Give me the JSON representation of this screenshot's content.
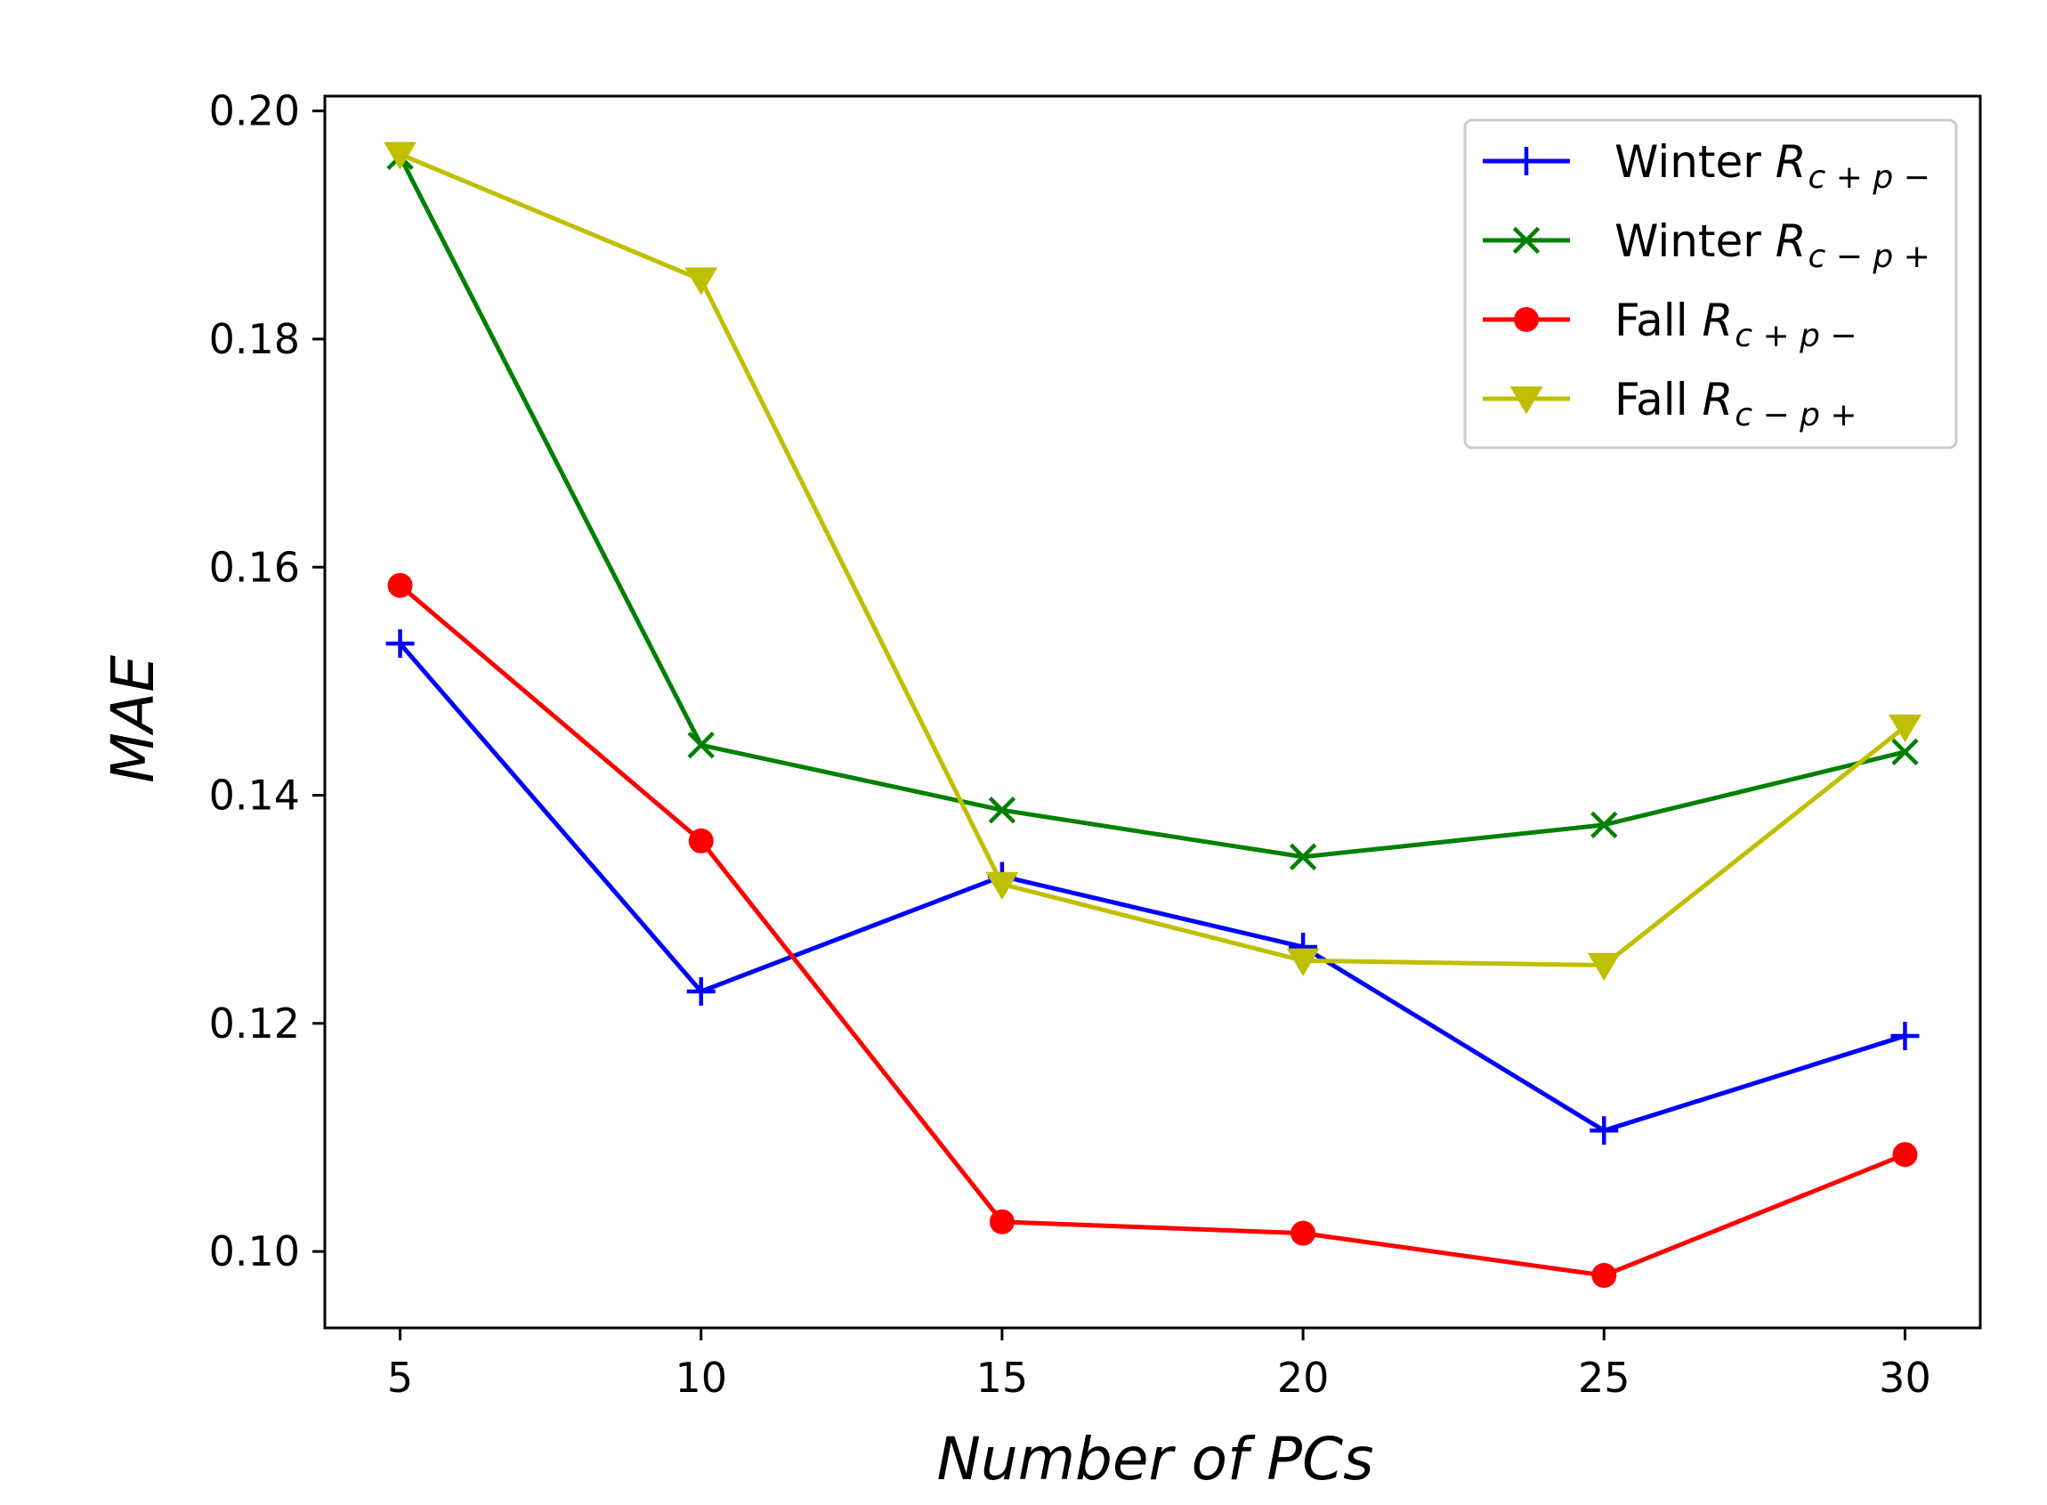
{
  "chart_data": {
    "type": "line",
    "title": "",
    "xlabel": "Number of PCs",
    "ylabel": "MAE",
    "x": [
      5,
      10,
      15,
      20,
      25,
      30
    ],
    "xticks": [
      5,
      10,
      15,
      20,
      25,
      30
    ],
    "xlim": [
      3.75,
      31.25
    ],
    "ylim": [
      0.0933,
      0.2013
    ],
    "yticks": [
      0.1,
      0.12,
      0.14,
      0.16,
      0.18,
      0.2
    ],
    "ytick_labels": [
      "0.10",
      "0.12",
      "0.14",
      "0.16",
      "0.18",
      "0.20"
    ],
    "grid": false,
    "legend_position": "top-right",
    "series": [
      {
        "name": "Winter R_{c+p-}",
        "label_main": "Winter ",
        "label_r": "R",
        "label_sub": "c + p −",
        "color": "#0000ff",
        "marker": "plus",
        "values": [
          0.1533,
          0.1228,
          0.1329,
          0.1267,
          0.1106,
          0.1189
        ]
      },
      {
        "name": "Winter R_{c-p+}",
        "label_main": "Winter ",
        "label_r": "R",
        "label_sub": "c − p +",
        "color": "#008000",
        "marker": "x",
        "values": [
          0.196,
          0.1444,
          0.1387,
          0.1346,
          0.1374,
          0.1438
        ]
      },
      {
        "name": "Fall R_{c+p-}",
        "label_main": "Fall ",
        "label_r": "R",
        "label_sub": "c + p −",
        "color": "#ff0000",
        "marker": "circle",
        "values": [
          0.1584,
          0.136,
          0.1026,
          0.1016,
          0.0979,
          0.1085
        ]
      },
      {
        "name": "Fall R_{c-p+}",
        "label_main": "Fall ",
        "label_r": "R",
        "label_sub": "c − p +",
        "color": "#bfbf00",
        "marker": "triangle-down",
        "values": [
          0.1962,
          0.1852,
          0.1322,
          0.1255,
          0.1251,
          0.146
        ]
      }
    ]
  }
}
